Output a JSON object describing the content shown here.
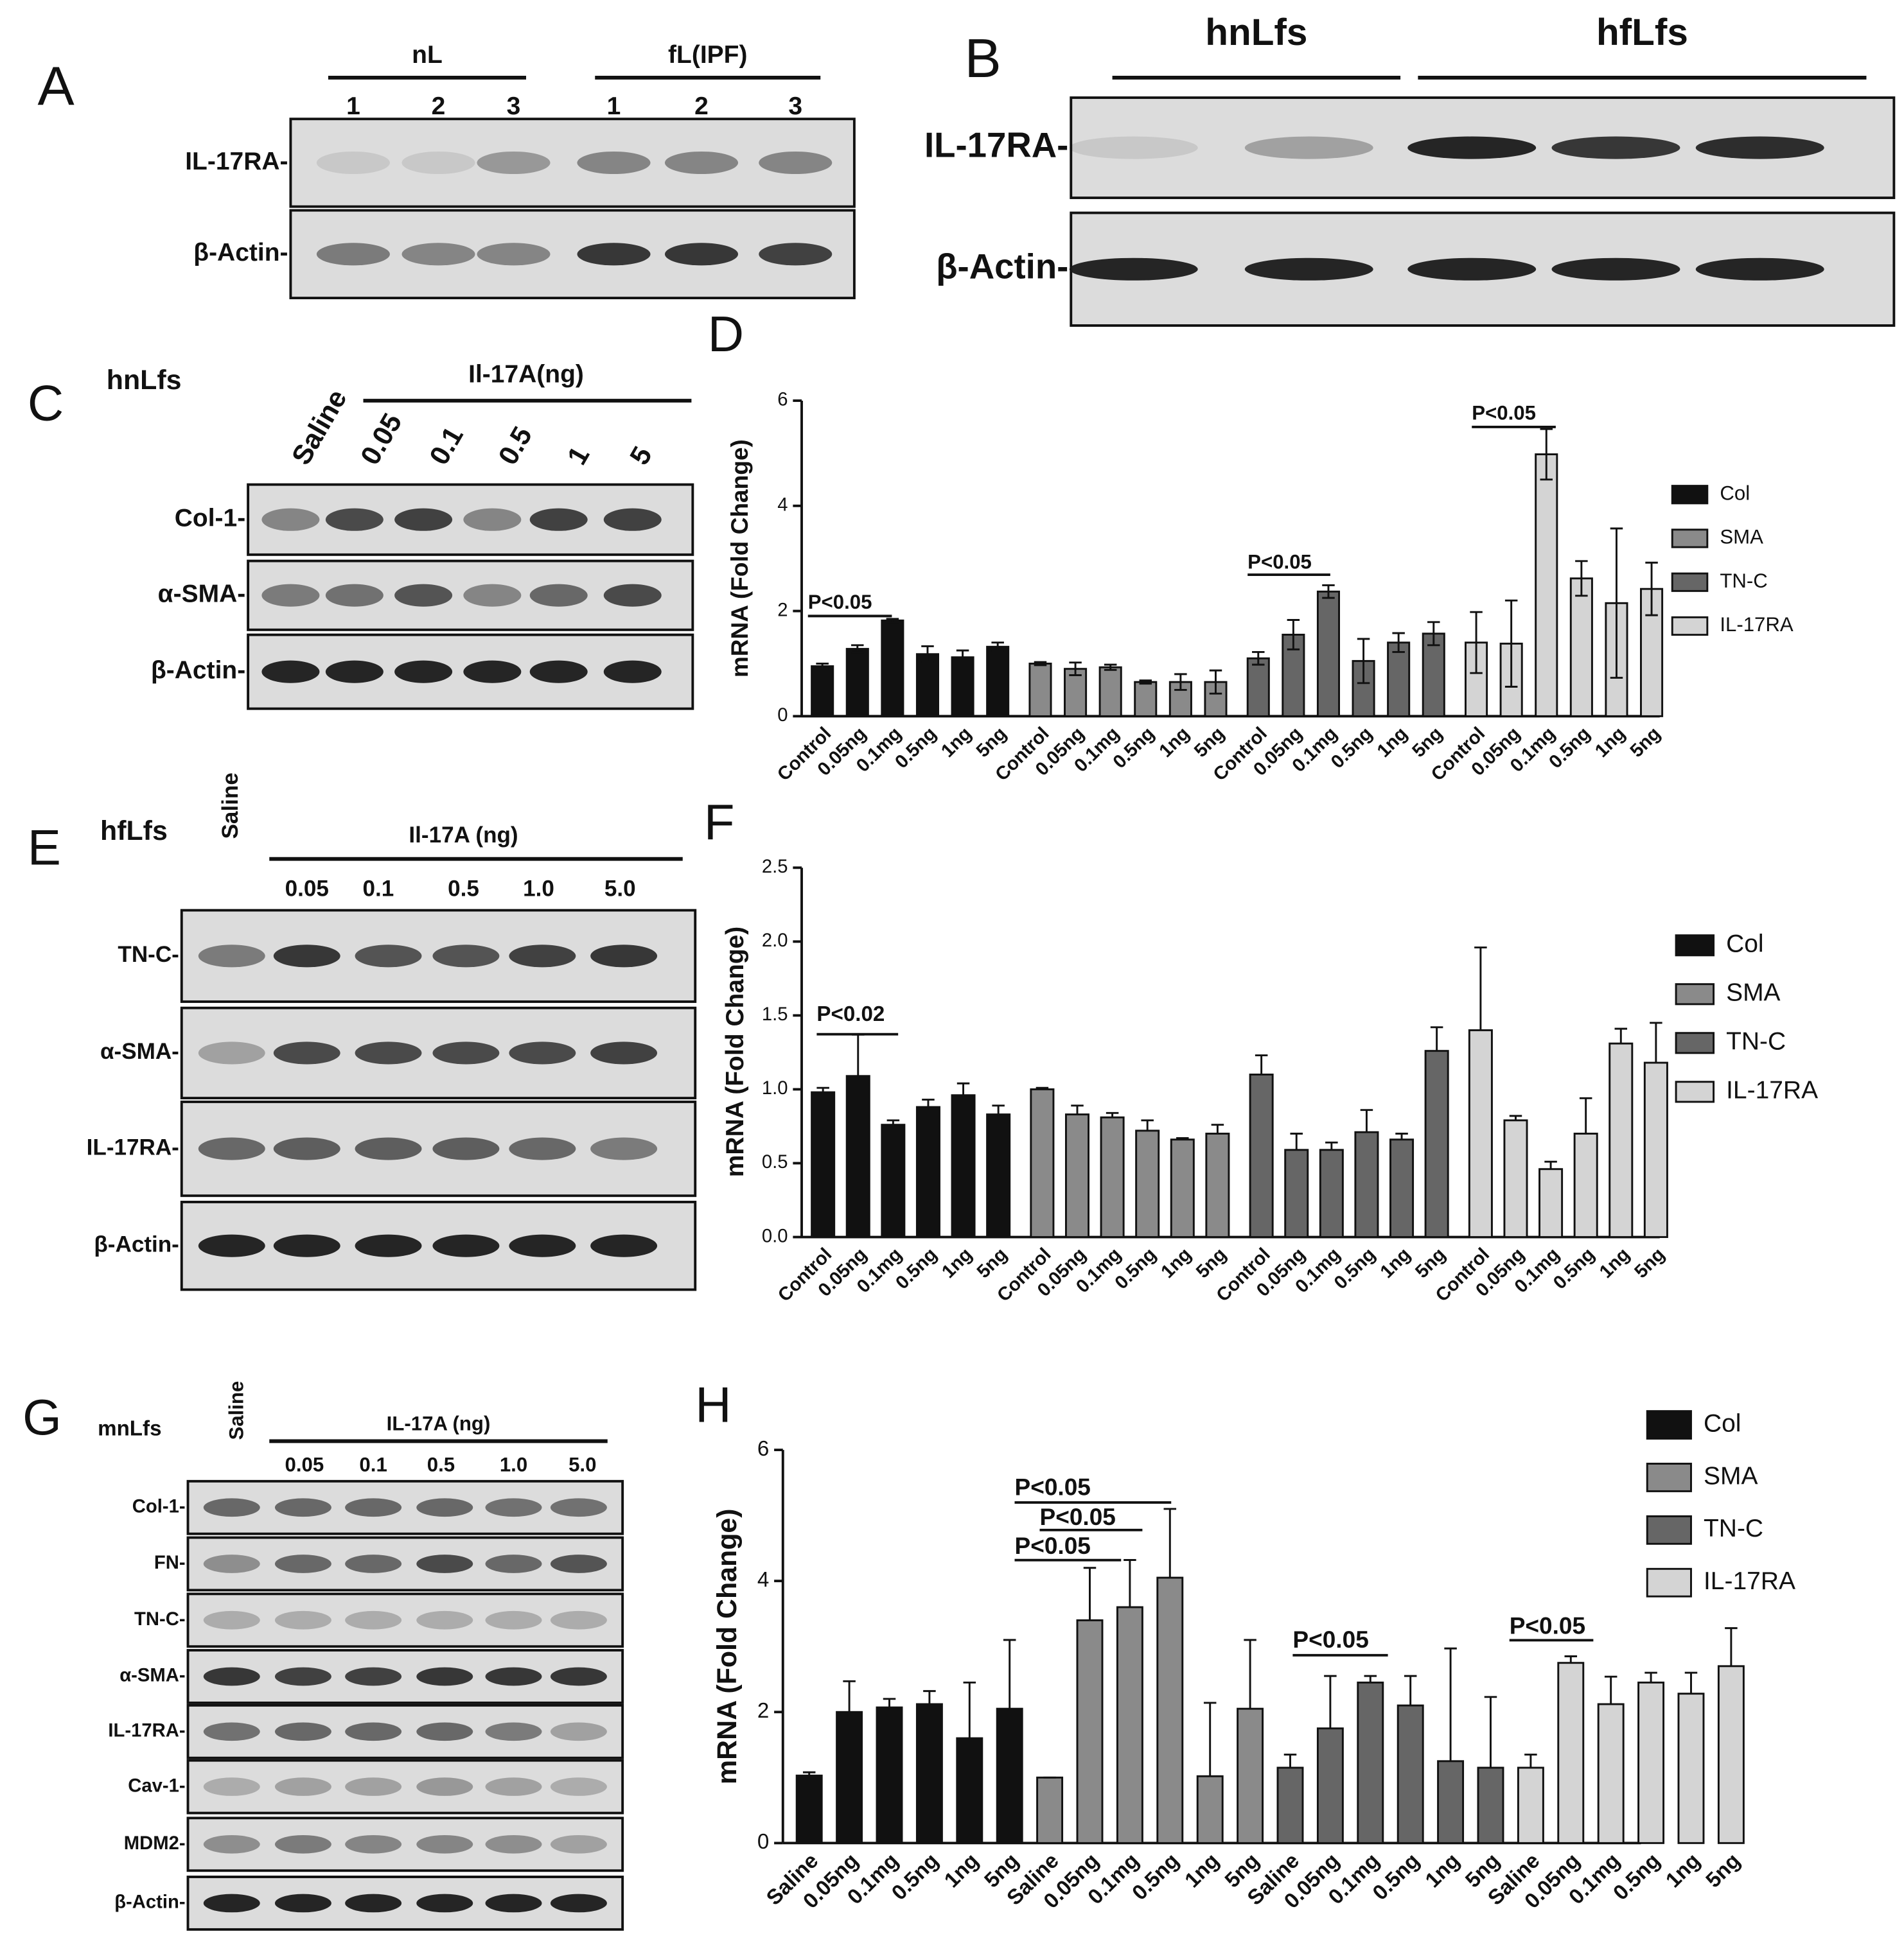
{
  "blots": [
    {
      "letter": "A",
      "groups": [
        "nL",
        "fL(IPF)"
      ],
      "lanes": [
        "1",
        "2",
        "3",
        "1",
        "2",
        "3"
      ],
      "rows": [
        "IL-17RA-",
        "β-Actin-"
      ]
    },
    {
      "letter": "B",
      "groups": [
        "hnLfs",
        "hfLfs"
      ],
      "rows": [
        "IL-17RA-",
        "β-Actin-"
      ]
    },
    {
      "letter": "C",
      "cell": "hnLfs",
      "treatment": "Il-17A(ng)",
      "lanes": [
        "Saline",
        "0.05",
        "0.1",
        "0.5",
        "1",
        "5"
      ],
      "rows": [
        "Col-1-",
        "α-SMA-",
        "β-Actin-"
      ]
    },
    {
      "letter": "E",
      "cell": "hfLfs",
      "treatment": "Il-17A (ng)",
      "lanes": [
        "Saline",
        "0.05",
        "0.1",
        "0.5",
        "1.0",
        "5.0"
      ],
      "rows": [
        "TN-C-",
        "α-SMA-",
        "IL-17RA-",
        "β-Actin-"
      ]
    },
    {
      "letter": "G",
      "cell": "mnLfs",
      "treatment": "IL-17A (ng)",
      "lanes": [
        "Saline",
        "0.05",
        "0.1",
        "0.5",
        "1.0",
        "5.0"
      ],
      "rows": [
        "Col-1-",
        "FN-",
        "TN-C-",
        "α-SMA-",
        "IL-17RA-",
        "Cav-1-",
        "MDM2-",
        "β-Actin-"
      ]
    }
  ],
  "chart_data": [
    {
      "type": "bar",
      "label": "D",
      "y_label": "mRNA (Fold Change)",
      "error_bars": "both",
      "categories": [
        "Control",
        "0.05ng",
        "0.1mg",
        "0.5ng",
        "1ng",
        "5ng"
      ],
      "ylim": [
        0,
        6
      ],
      "yticks": [
        0,
        2,
        4,
        6
      ],
      "annotations": [
        "P<0.05",
        "P<0.05",
        "P<0.05"
      ],
      "series": [
        {
          "name": "Col",
          "color": "#111111",
          "values": [
            0.95,
            1.28,
            1.82,
            1.18,
            1.12,
            1.32
          ],
          "errors": [
            0.05,
            0.07,
            0.03,
            0.15,
            0.13,
            0.08
          ]
        },
        {
          "name": "SMA",
          "color": "#8a8a8a",
          "values": [
            1.0,
            0.9,
            0.93,
            0.65,
            0.65,
            0.65
          ],
          "errors": [
            0.03,
            0.12,
            0.05,
            0.03,
            0.15,
            0.22
          ]
        },
        {
          "name": "TN-C",
          "color": "#666666",
          "values": [
            1.1,
            1.55,
            2.37,
            1.05,
            1.4,
            1.57
          ],
          "errors": [
            0.12,
            0.28,
            0.12,
            0.42,
            0.18,
            0.22
          ]
        },
        {
          "name": "IL-17RA",
          "color": "#d4d4d4",
          "values": [
            1.4,
            1.38,
            4.98,
            2.62,
            2.15,
            2.42
          ],
          "errors": [
            0.58,
            0.82,
            0.48,
            0.33,
            1.42,
            0.5
          ]
        }
      ]
    },
    {
      "type": "bar",
      "label": "F",
      "y_label": "mRNA (Fold Change)",
      "error_bars": "upper",
      "categories": [
        "Control",
        "0.05ng",
        "0.1mg",
        "0.5ng",
        "1ng",
        "5ng"
      ],
      "ylim": [
        0,
        2.5
      ],
      "yticks": [
        {
          "value": 0,
          "label": "0.0"
        },
        0.5,
        {
          "value": 1,
          "label": "1.0"
        },
        1.5,
        {
          "value": 2,
          "label": "2.0"
        },
        2.5
      ],
      "annotations": [
        "P<0.02"
      ],
      "series": [
        {
          "name": "Col",
          "color": "#111111",
          "values": [
            0.98,
            1.09,
            0.76,
            0.88,
            0.96,
            0.83
          ],
          "errors": [
            0.03,
            0.28,
            0.03,
            0.05,
            0.08,
            0.06
          ]
        },
        {
          "name": "SMA",
          "color": "#8a8a8a",
          "values": [
            1.0,
            0.83,
            0.81,
            0.72,
            0.66,
            0.7
          ],
          "errors": [
            0.01,
            0.06,
            0.03,
            0.07,
            0.01,
            0.06
          ]
        },
        {
          "name": "TN-C",
          "color": "#666666",
          "values": [
            1.1,
            0.59,
            0.59,
            0.71,
            0.66,
            1.26
          ],
          "errors": [
            0.13,
            0.11,
            0.05,
            0.15,
            0.04,
            0.16
          ]
        },
        {
          "name": "IL-17RA",
          "color": "#d4d4d4",
          "values": [
            1.4,
            0.79,
            0.46,
            0.7,
            1.31,
            1.18
          ],
          "errors": [
            0.56,
            0.03,
            0.05,
            0.24,
            0.1,
            0.27
          ]
        }
      ]
    },
    {
      "type": "bar",
      "label": "H",
      "y_label": "mRNA (Fold Change)",
      "error_bars": "upper",
      "categories": [
        "Saline",
        "0.05ng",
        "0.1mg",
        "0.5ng",
        "1ng",
        "5ng"
      ],
      "ylim": [
        0,
        6
      ],
      "yticks": [
        0,
        2,
        4,
        6
      ],
      "annotations": [
        "P<0.05",
        "P<0.05",
        "P<0.05",
        "P<0.05",
        "P<0.05"
      ],
      "series": [
        {
          "name": "Col",
          "color": "#111111",
          "values": [
            1.03,
            2.0,
            2.07,
            2.12,
            1.6,
            2.05
          ],
          "errors": [
            0.05,
            0.47,
            0.13,
            0.2,
            0.85,
            1.05
          ]
        },
        {
          "name": "SMA",
          "color": "#8a8a8a",
          "values": [
            1.0,
            3.4,
            3.6,
            4.05,
            1.02,
            2.05
          ],
          "errors": [
            0,
            0.8,
            0.72,
            1.05,
            1.12,
            1.05
          ]
        },
        {
          "name": "TN-C",
          "color": "#666666",
          "values": [
            1.15,
            1.75,
            2.45,
            2.1,
            1.25,
            1.15
          ],
          "errors": [
            0.2,
            0.8,
            0.1,
            0.45,
            1.72,
            1.08
          ]
        },
        {
          "name": "IL-17RA",
          "color": "#d4d4d4",
          "values": [
            1.15,
            2.75,
            2.12,
            2.45,
            2.28,
            2.7
          ],
          "errors": [
            0.2,
            0.1,
            0.42,
            0.15,
            0.32,
            0.58
          ]
        }
      ]
    }
  ]
}
